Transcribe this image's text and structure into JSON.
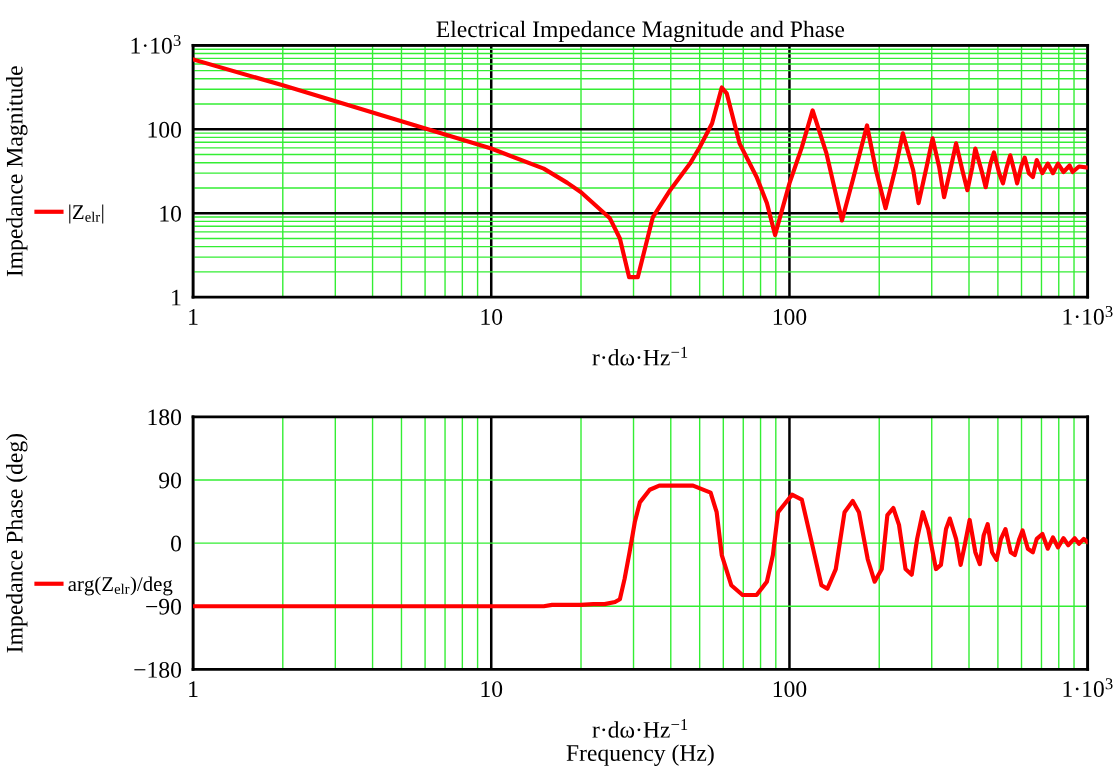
{
  "chart_data": [
    {
      "type": "line",
      "title": "Electrical Impedance Magnitude and Phase",
      "xlabel": "r·dω·Hz$^{−1}$",
      "ylabel": "Impedance Magnitude",
      "log": "xy",
      "grid": true,
      "legend": "left",
      "marker": "none",
      "line_style": "solid",
      "xlim": [
        1,
        1000
      ],
      "xticks": [
        1,
        {
          "value": 2,
          "label": null
        },
        {
          "value": 3,
          "label": null
        },
        {
          "value": 4,
          "label": null
        },
        {
          "value": 5,
          "label": null
        },
        {
          "value": 6,
          "label": null
        },
        {
          "value": 7,
          "label": null
        },
        {
          "value": 8,
          "label": null
        },
        {
          "value": 9,
          "label": null
        },
        10,
        {
          "value": 20,
          "label": null
        },
        {
          "value": 30,
          "label": null
        },
        {
          "value": 40,
          "label": null
        },
        {
          "value": 50,
          "label": null
        },
        {
          "value": 60,
          "label": null
        },
        {
          "value": 70,
          "label": null
        },
        {
          "value": 80,
          "label": null
        },
        {
          "value": 90,
          "label": null
        },
        100,
        {
          "value": 200,
          "label": null
        },
        {
          "value": 300,
          "label": null
        },
        {
          "value": 400,
          "label": null
        },
        {
          "value": 500,
          "label": null
        },
        {
          "value": 600,
          "label": null
        },
        {
          "value": 700,
          "label": null
        },
        {
          "value": 800,
          "label": null
        },
        {
          "value": 900,
          "label": null
        },
        {
          "value": 1000,
          "label": "1·10$^{3}$"
        }
      ],
      "ylim": [
        1,
        1000
      ],
      "yticks": [
        1,
        {
          "value": 2,
          "label": null
        },
        {
          "value": 3,
          "label": null
        },
        {
          "value": 4,
          "label": null
        },
        {
          "value": 5,
          "label": null
        },
        {
          "value": 6,
          "label": null
        },
        {
          "value": 7,
          "label": null
        },
        {
          "value": 8,
          "label": null
        },
        {
          "value": 9,
          "label": null
        },
        10,
        {
          "value": 20,
          "label": null
        },
        {
          "value": 30,
          "label": null
        },
        {
          "value": 40,
          "label": null
        },
        {
          "value": 50,
          "label": null
        },
        {
          "value": 60,
          "label": null
        },
        {
          "value": 70,
          "label": null
        },
        {
          "value": 80,
          "label": null
        },
        {
          "value": 90,
          "label": null
        },
        100,
        {
          "value": 200,
          "label": null
        },
        {
          "value": 300,
          "label": null
        },
        {
          "value": 400,
          "label": null
        },
        {
          "value": 500,
          "label": null
        },
        {
          "value": 600,
          "label": null
        },
        {
          "value": 700,
          "label": null
        },
        {
          "value": 800,
          "label": null
        },
        {
          "value": 900,
          "label": null
        },
        {
          "value": 1000,
          "label": "1·10$^{3}$"
        }
      ],
      "series": [
        {
          "name": "|Z$_{elr}$|",
          "color": "#ff0000",
          "x": [
            1,
            2,
            5,
            10,
            15,
            18,
            20,
            25,
            27,
            29,
            31,
            34.8,
            39.8,
            46.4,
            50,
            55,
            59.3,
            61.6,
            68,
            77.6,
            84,
            89.5,
            100,
            110,
            119.6,
            133,
            150,
            163,
            182,
            195,
            210,
            227,
            240,
            260,
            271,
            288,
            302,
            318,
            330,
            350,
            362,
            380,
            395,
            410,
            420,
            443,
            455,
            472,
            485,
            505,
            520,
            535,
            550,
            570,
            580,
            600,
            615,
            635,
            655,
            675,
            705,
            735,
            765,
            795,
            830,
            870,
            890,
            935,
            995
          ],
          "values": [
            680,
            334,
            125,
            59,
            34,
            23,
            17.8,
            8.7,
            5,
            1.73,
            1.73,
            8.9,
            18.8,
            39,
            61,
            117,
            315,
            268,
            68,
            27,
            13.2,
            5.5,
            22.7,
            61,
            168,
            52,
            8.2,
            24.7,
            111,
            32.5,
            11.5,
            35,
            89.5,
            32.5,
            13.2,
            35,
            78,
            35,
            15.5,
            39,
            68,
            32.5,
            18.8,
            35,
            59,
            30,
            20.4,
            39,
            53,
            30,
            22.7,
            35,
            49,
            30,
            22.7,
            37,
            46,
            30,
            27,
            43,
            30,
            39,
            30,
            39,
            31,
            37,
            31,
            36,
            35
          ]
        }
      ]
    },
    {
      "type": "line",
      "xlabel": "r·dω·Hz$^{−1}$\nFrequency (Hz)",
      "ylabel": "Impedance Phase (deg)",
      "log": "x",
      "grid": true,
      "legend": "left",
      "marker": "none",
      "line_style": "solid",
      "xlim": [
        1,
        1000
      ],
      "xticks": [
        1,
        {
          "value": 2,
          "label": null
        },
        {
          "value": 3,
          "label": null
        },
        {
          "value": 4,
          "label": null
        },
        {
          "value": 5,
          "label": null
        },
        {
          "value": 6,
          "label": null
        },
        {
          "value": 7,
          "label": null
        },
        {
          "value": 8,
          "label": null
        },
        {
          "value": 9,
          "label": null
        },
        10,
        {
          "value": 20,
          "label": null
        },
        {
          "value": 30,
          "label": null
        },
        {
          "value": 40,
          "label": null
        },
        {
          "value": 50,
          "label": null
        },
        {
          "value": 60,
          "label": null
        },
        {
          "value": 70,
          "label": null
        },
        {
          "value": 80,
          "label": null
        },
        {
          "value": 90,
          "label": null
        },
        100,
        {
          "value": 200,
          "label": null
        },
        {
          "value": 300,
          "label": null
        },
        {
          "value": 400,
          "label": null
        },
        {
          "value": 500,
          "label": null
        },
        {
          "value": 600,
          "label": null
        },
        {
          "value": 700,
          "label": null
        },
        {
          "value": 800,
          "label": null
        },
        {
          "value": 900,
          "label": null
        },
        {
          "value": 1000,
          "label": "1·10$^{3}$"
        }
      ],
      "ylim": [
        -180,
        180
      ],
      "yticks": [
        {
          "value": -180,
          "label": "−180"
        },
        {
          "value": -90,
          "label": "−90"
        },
        0,
        90,
        180
      ],
      "series": [
        {
          "name": "arg(Z$_{elr}$)/deg",
          "color": "#ff0000",
          "x": [
            1,
            10,
            15,
            16,
            20,
            22,
            24,
            26,
            27,
            28,
            29.1,
            30.3,
            31.5,
            34,
            36.6,
            47.5,
            54.4,
            57,
            59.3,
            63.8,
            69.6,
            77.6,
            84,
            88,
            91.6,
            102,
            110,
            118,
            128,
            134,
            143,
            153,
            163,
            171,
            183,
            193,
            204,
            213,
            223,
            233,
            245,
            257,
            268,
            280,
            292,
            310,
            322,
            335,
            345,
            362,
            375,
            387,
            402,
            420,
            435,
            448,
            462,
            478,
            495,
            512,
            530,
            552,
            570,
            590,
            605,
            630,
            655,
            675,
            705,
            735,
            765,
            795,
            830,
            860,
            905,
            935,
            970,
            995
          ],
          "values": [
            -90,
            -90,
            -90,
            -88,
            -88,
            -87,
            -87,
            -84,
            -80,
            -51,
            -13,
            30,
            58,
            76,
            82,
            82,
            72,
            44,
            -17,
            -60,
            -74,
            -74,
            -55,
            -17,
            44,
            69,
            62,
            6,
            -60,
            -65,
            -37,
            44,
            60,
            44,
            -23,
            -55,
            -37,
            40,
            50,
            26,
            -37,
            -45,
            6,
            44,
            20,
            -37,
            -31,
            20,
            35,
            6,
            -31,
            -3,
            33,
            -13,
            -30,
            11,
            27,
            -13,
            -24,
            6,
            20,
            -13,
            -17,
            6,
            18,
            -8,
            -13,
            6,
            13,
            -8,
            8,
            -6,
            7,
            -3,
            7,
            -1,
            6,
            2
          ]
        }
      ]
    }
  ]
}
